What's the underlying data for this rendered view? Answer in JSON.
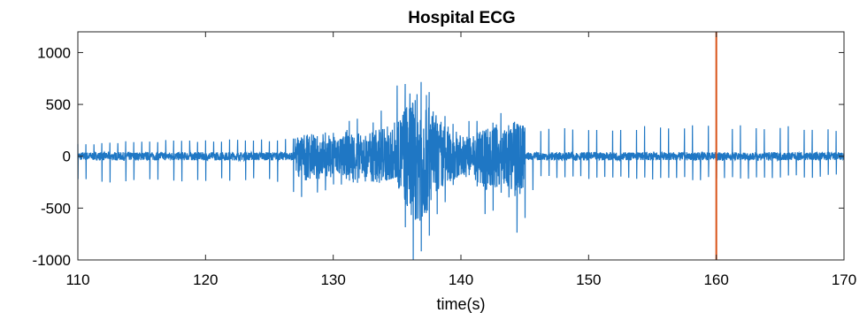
{
  "chart_data": {
    "type": "line",
    "title": "Hospital ECG",
    "xlabel": "time(s)",
    "ylabel": "",
    "xlim": [
      110,
      170
    ],
    "ylim": [
      -1000,
      1200
    ],
    "xticks": [
      110,
      120,
      130,
      140,
      150,
      160,
      170
    ],
    "yticks": [
      -1000,
      -500,
      0,
      500,
      1000
    ],
    "grid": false,
    "series": [
      {
        "color": "#1f77c4",
        "sampled_envelope": [
          {
            "x": 110,
            "min": -250,
            "max": 120
          },
          {
            "x": 115,
            "min": -260,
            "max": 160
          },
          {
            "x": 120,
            "min": -250,
            "max": 160
          },
          {
            "x": 125,
            "min": -240,
            "max": 170
          },
          {
            "x": 127.5,
            "min": -420,
            "max": 200
          },
          {
            "x": 130,
            "min": -300,
            "max": 240
          },
          {
            "x": 131.5,
            "min": -250,
            "max": 420
          },
          {
            "x": 133,
            "min": -280,
            "max": 330
          },
          {
            "x": 135,
            "min": -200,
            "max": 700
          },
          {
            "x": 136,
            "min": -1000,
            "max": 730
          },
          {
            "x": 137,
            "min": -1000,
            "max": 800
          },
          {
            "x": 138,
            "min": -600,
            "max": 500
          },
          {
            "x": 140,
            "min": -200,
            "max": 300
          },
          {
            "x": 141,
            "min": -200,
            "max": 400
          },
          {
            "x": 142,
            "min": -700,
            "max": 250
          },
          {
            "x": 143.5,
            "min": -250,
            "max": 480
          },
          {
            "x": 144.5,
            "min": -850,
            "max": 300
          },
          {
            "x": 146,
            "min": -200,
            "max": 280
          },
          {
            "x": 150,
            "min": -230,
            "max": 280
          },
          {
            "x": 155,
            "min": -230,
            "max": 300
          },
          {
            "x": 160,
            "min": -230,
            "max": 300
          },
          {
            "x": 165,
            "min": -220,
            "max": 300
          },
          {
            "x": 170,
            "min": -200,
            "max": 260
          }
        ]
      }
    ],
    "annotations": [
      {
        "type": "vline",
        "x": 160,
        "color": "#d95319"
      }
    ]
  }
}
